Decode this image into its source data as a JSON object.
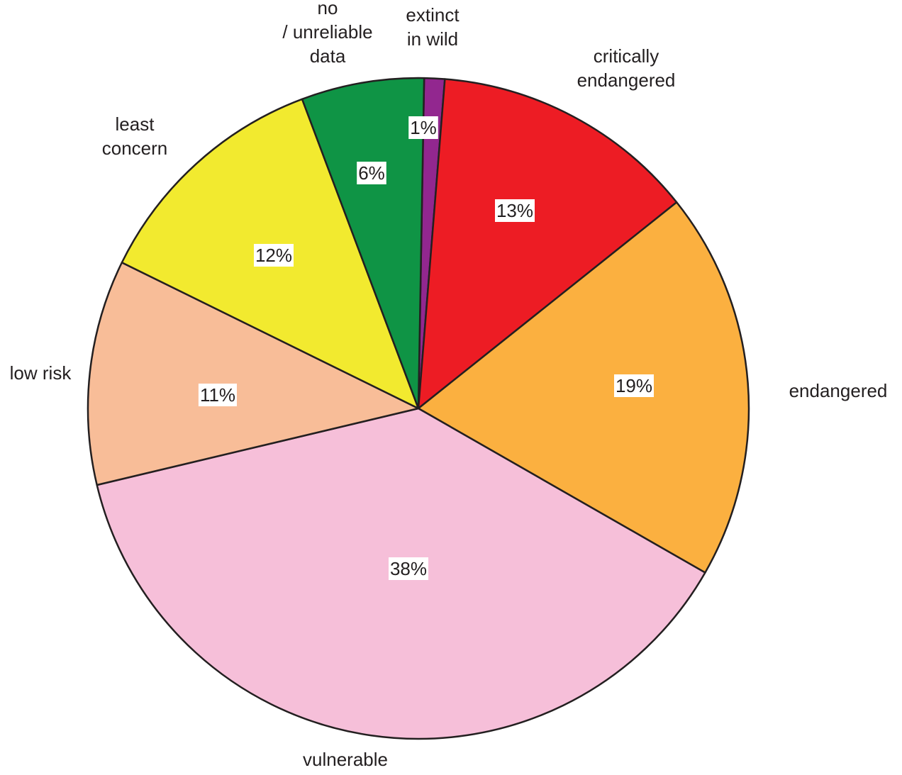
{
  "chart_data": {
    "type": "pie",
    "title": "",
    "slices": [
      {
        "label": "extinct in wild",
        "lines": [
          "extinct",
          "in wild"
        ],
        "value": 1,
        "value_label": "1%",
        "color": "#92278f"
      },
      {
        "label": "critically endangered",
        "lines": [
          "critically",
          "endangered"
        ],
        "value": 13,
        "value_label": "13%",
        "color": "#ed1c24"
      },
      {
        "label": "endangered",
        "lines": [
          "endangered"
        ],
        "value": 19,
        "value_label": "19%",
        "color": "#fbb040"
      },
      {
        "label": "vulnerable",
        "lines": [
          "vulnerable"
        ],
        "value": 38,
        "value_label": "38%",
        "color": "#f6bfd9"
      },
      {
        "label": "low risk",
        "lines": [
          "low risk"
        ],
        "value": 11,
        "value_label": "11%",
        "color": "#f8bd98"
      },
      {
        "label": "least concern",
        "lines": [
          "least",
          "concern"
        ],
        "value": 12,
        "value_label": "12%",
        "color": "#f2ea2f"
      },
      {
        "label": "no /unreliable data",
        "lines": [
          "no",
          "/ unreliable",
          "data"
        ],
        "value": 6,
        "value_label": "6%",
        "color": "#0f9445"
      }
    ]
  }
}
